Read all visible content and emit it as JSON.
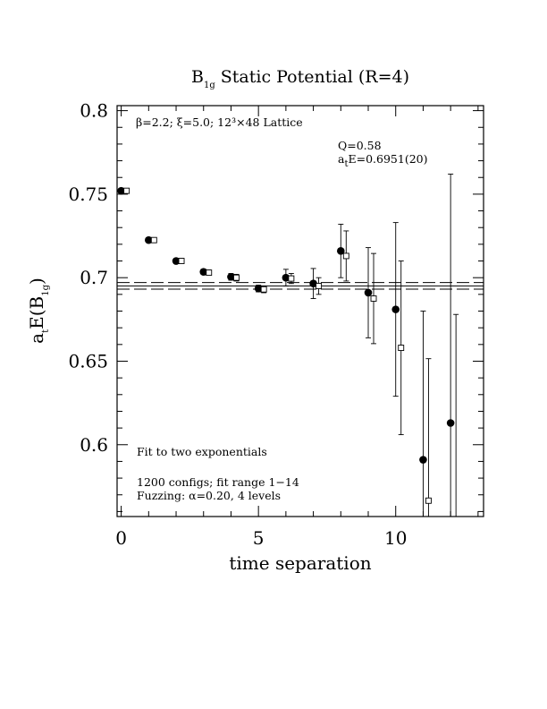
{
  "chart_data": {
    "type": "scatter",
    "title": "B",
    "title_sub": "1g",
    "title_rest": " Static Potential (R=4)",
    "xlabel": "time separation",
    "ylabel": "a",
    "ylabel_sub1": "t",
    "ylabel_mid": "E(B",
    "ylabel_sub2": "1g",
    "ylabel_end": ")",
    "xlim": [
      -0.15,
      13.2
    ],
    "ylim": [
      0.557,
      0.803
    ],
    "xticks_major": [
      0,
      5,
      10
    ],
    "xtick_labels": [
      "0",
      "5",
      "10"
    ],
    "yticks_major": [
      0.6,
      0.65,
      0.7,
      0.75,
      0.8
    ],
    "ytick_labels": [
      "0.6",
      "0.65",
      "0.7",
      "0.75",
      "0.8"
    ],
    "grid": false,
    "annotations": {
      "lattice": "β=2.2; ξ=5.0; 12³×48 Lattice",
      "q_value": "Q=0.58",
      "energy_prefix": "a",
      "energy_sub": "t",
      "energy_rest": "E=0.6951(20)",
      "fit_method": "Fit to two exponentials",
      "configs": "1200 configs; fit range 1−14",
      "fuzzing": "Fuzzing: α=0.20, 4 levels"
    },
    "fit": {
      "center": 0.6951,
      "error": 0.002
    },
    "series": [
      {
        "marker": "filled-circle",
        "points": [
          {
            "x": 0,
            "y": 0.752,
            "err": 0.001
          },
          {
            "x": 1,
            "y": 0.7225,
            "err": 0.001
          },
          {
            "x": 2,
            "y": 0.71,
            "err": 0.0015
          },
          {
            "x": 3,
            "y": 0.7035,
            "err": 0.0015
          },
          {
            "x": 4,
            "y": 0.7005,
            "err": 0.002
          },
          {
            "x": 5,
            "y": 0.6935,
            "err": 0.002
          },
          {
            "x": 6,
            "y": 0.7,
            "err": 0.005
          },
          {
            "x": 7,
            "y": 0.6965,
            "err": 0.009
          },
          {
            "x": 8,
            "y": 0.716,
            "err": 0.016
          },
          {
            "x": 9,
            "y": 0.691,
            "err": 0.027
          },
          {
            "x": 10,
            "y": 0.681,
            "err": 0.052
          },
          {
            "x": 11,
            "y": 0.591,
            "err": 0.089
          },
          {
            "x": 12,
            "y": 0.613,
            "err": 0.149
          }
        ]
      },
      {
        "marker": "open-square",
        "points": [
          {
            "x": 0,
            "y": 0.752,
            "err": 0.001
          },
          {
            "x": 1,
            "y": 0.7225,
            "err": 0.001
          },
          {
            "x": 2,
            "y": 0.71,
            "err": 0.0015
          },
          {
            "x": 3,
            "y": 0.703,
            "err": 0.0015
          },
          {
            "x": 4,
            "y": 0.7,
            "err": 0.002
          },
          {
            "x": 5,
            "y": 0.693,
            "err": 0.002
          },
          {
            "x": 6,
            "y": 0.6995,
            "err": 0.003
          },
          {
            "x": 7,
            "y": 0.695,
            "err": 0.005
          },
          {
            "x": 8,
            "y": 0.713,
            "err": 0.015
          },
          {
            "x": 9,
            "y": 0.6875,
            "err": 0.027
          },
          {
            "x": 10,
            "y": 0.658,
            "err": 0.052
          },
          {
            "x": 11,
            "y": 0.5665,
            "err": 0.085
          },
          {
            "x": 12,
            "y": 0.55,
            "err": 0.128
          }
        ]
      }
    ]
  }
}
